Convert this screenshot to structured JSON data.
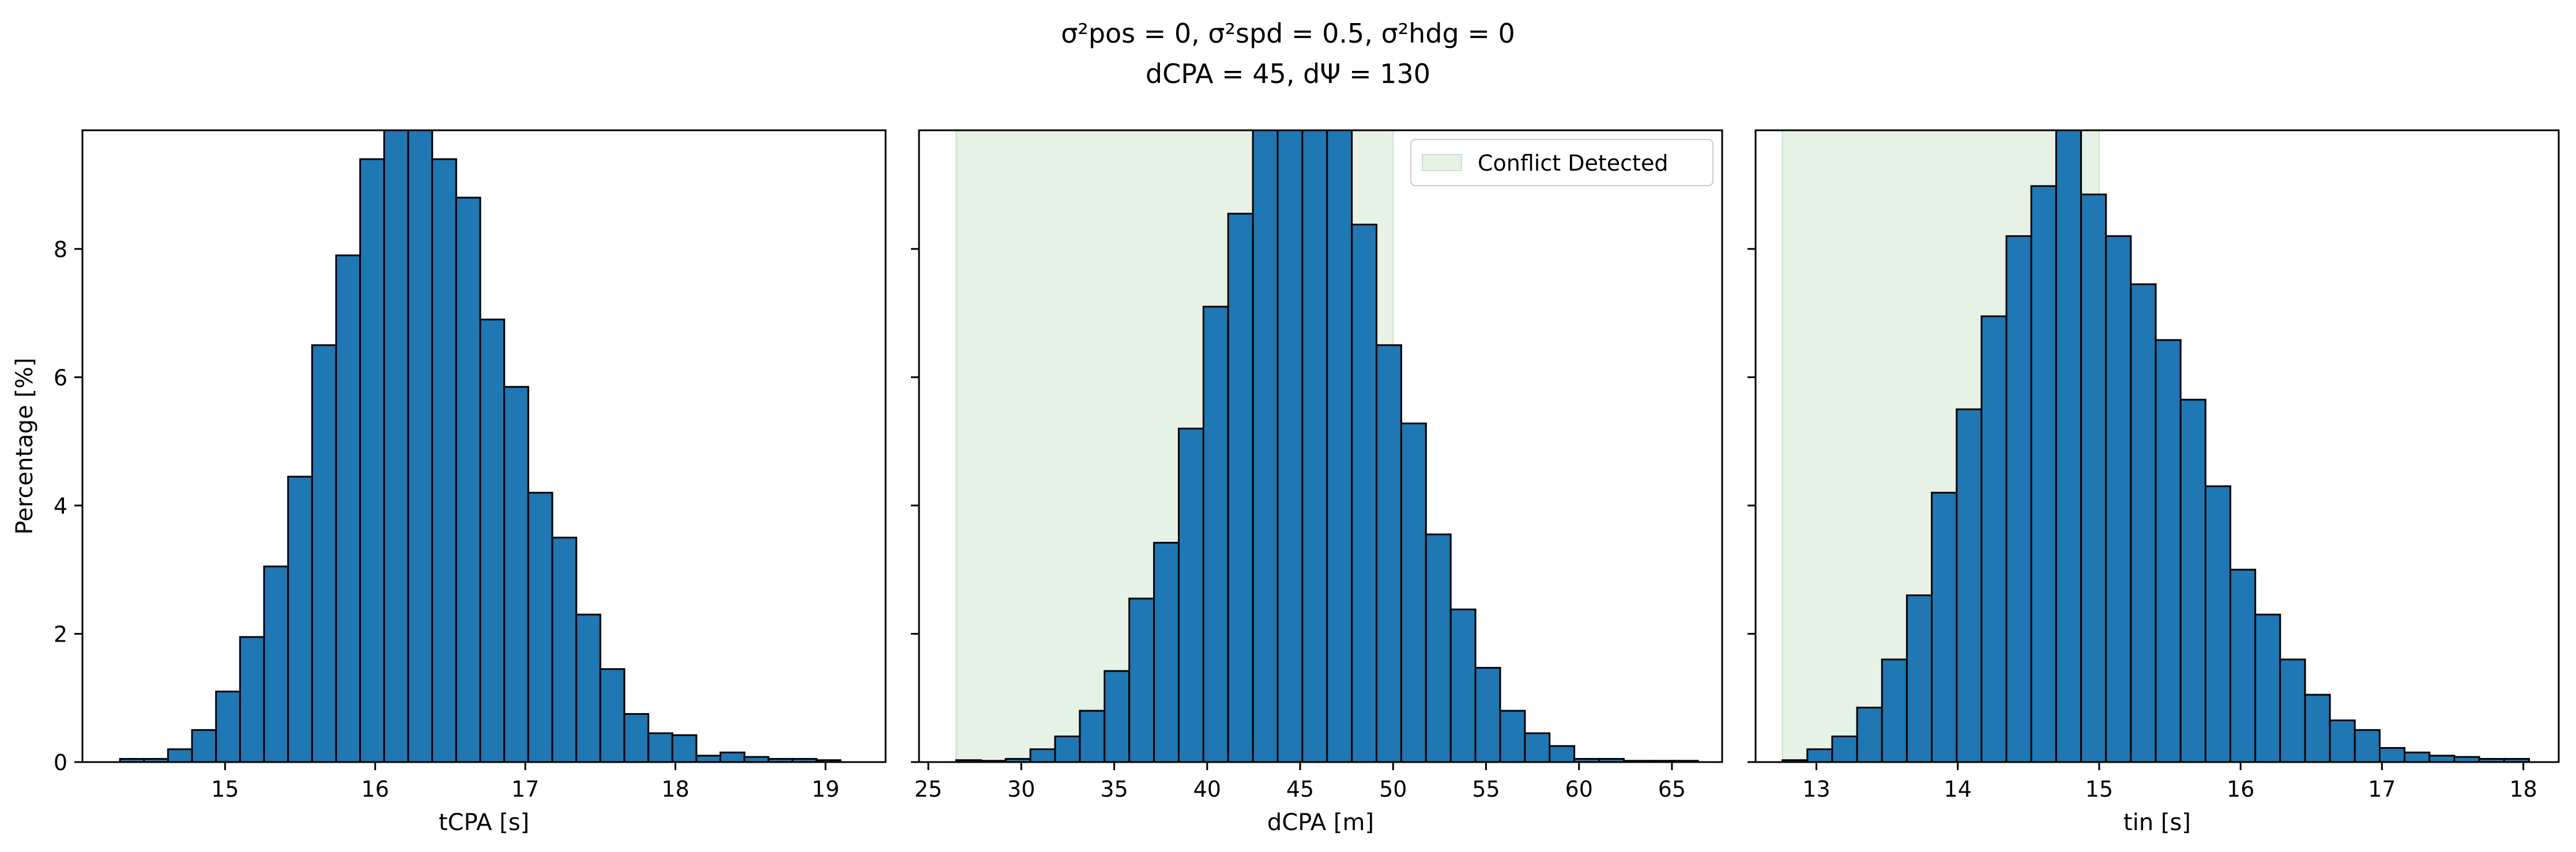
{
  "suptitle": {
    "line1": "σ²pos = 0, σ²spd = 0.5, σ²hdg = 0",
    "line2": "dCPA = 45, dΨ = 130"
  },
  "colors": {
    "bar_fill": "#1f77b4",
    "bar_edge": "#000000",
    "conflict_region": "#e6f2e6",
    "conflict_edge": "#c9e3c9"
  },
  "shared_y": {
    "label": "Percentage [%]",
    "ylim": [
      0,
      9.85
    ],
    "ticks": [
      0,
      2,
      4,
      6,
      8
    ]
  },
  "legend": {
    "label": "Conflict Detected",
    "placement": "top-right"
  },
  "chart_data": [
    {
      "type": "bar",
      "xlabel": "tCPA [s]",
      "xlim": [
        14.05,
        19.4
      ],
      "xticks": [
        15,
        16,
        17,
        18,
        19
      ],
      "bin_start": 14.3,
      "bin_width": 0.16,
      "values": [
        0.05,
        0.05,
        0.2,
        0.5,
        1.1,
        1.95,
        3.05,
        4.45,
        6.5,
        7.9,
        9.4,
        9.9,
        9.9,
        9.4,
        8.8,
        6.9,
        5.85,
        4.2,
        3.5,
        2.3,
        1.45,
        0.75,
        0.45,
        0.42,
        0.1,
        0.15,
        0.08,
        0.05,
        0.05,
        0.03
      ]
    },
    {
      "type": "bar",
      "xlabel": "dCPA [m]",
      "xlim": [
        24.5,
        67.7
      ],
      "xticks": [
        25,
        30,
        35,
        40,
        45,
        50,
        55,
        60,
        65
      ],
      "bin_start": 26.5,
      "bin_width": 1.33,
      "values": [
        0.03,
        0.02,
        0.05,
        0.2,
        0.4,
        0.8,
        1.42,
        2.55,
        3.42,
        5.2,
        7.1,
        8.55,
        9.9,
        9.9,
        9.9,
        9.9,
        8.38,
        6.5,
        5.28,
        3.55,
        2.38,
        1.47,
        0.8,
        0.45,
        0.25,
        0.05,
        0.05,
        0.02,
        0.02,
        0.02
      ],
      "conflict_region": [
        26.5,
        50.0
      ]
    },
    {
      "type": "bar",
      "xlabel": "tin [s]",
      "xlim": [
        12.57,
        18.25
      ],
      "xticks": [
        13,
        14,
        15,
        16,
        17,
        18
      ],
      "bin_start": 12.76,
      "bin_width": 0.176,
      "values": [
        0.03,
        0.2,
        0.4,
        0.85,
        1.6,
        2.6,
        4.2,
        5.5,
        6.95,
        8.2,
        8.98,
        9.9,
        8.85,
        8.2,
        7.45,
        6.58,
        5.65,
        4.3,
        3.0,
        2.3,
        1.6,
        1.05,
        0.65,
        0.5,
        0.22,
        0.15,
        0.1,
        0.08,
        0.05,
        0.05
      ],
      "conflict_region": [
        12.76,
        15.0
      ]
    }
  ]
}
